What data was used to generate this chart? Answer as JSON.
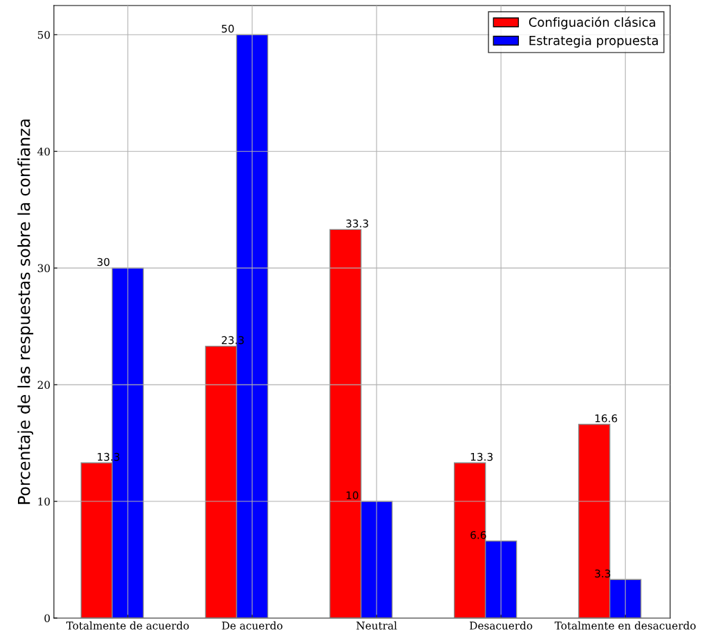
{
  "chart_data": {
    "type": "bar",
    "ylabel": "Porcentaje de las respuestas sobre la confianza",
    "categories": [
      "Totalmente de acuerdo",
      "De acuerdo",
      "Neutral",
      "Desacuerdo",
      "Totalmente en desacuerdo"
    ],
    "series": [
      {
        "name": "Configuación clásica",
        "color": "#ff0000",
        "values": [
          13.3,
          23.3,
          33.3,
          13.3,
          16.6
        ]
      },
      {
        "name": "Estrategia propuesta",
        "color": "#0000ff",
        "values": [
          30,
          50,
          10,
          6.6,
          3.3
        ]
      }
    ],
    "ylim": [
      0,
      52.5
    ],
    "yticks": [
      0,
      10,
      20,
      30,
      40,
      50
    ],
    "grid": true,
    "legend": "top right",
    "data_labels": true
  }
}
